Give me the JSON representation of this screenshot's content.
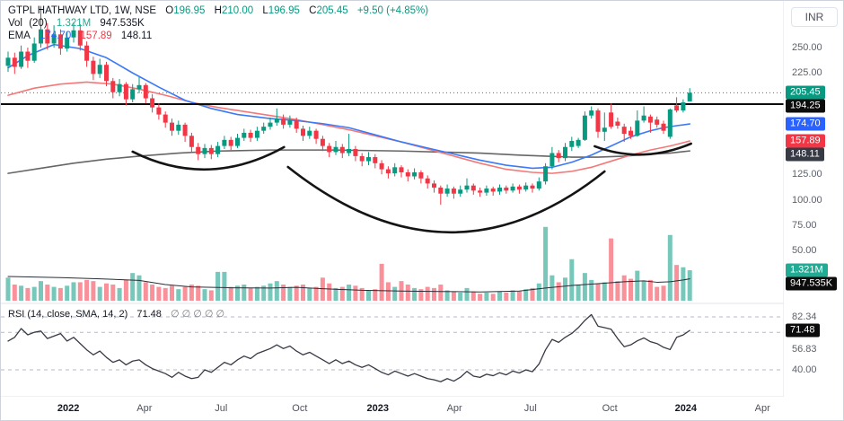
{
  "header": {
    "symbol_title": "GTPL HATHWAY LTD, 1W, NSE",
    "ohlc": {
      "o_label": "O",
      "open": "196.95",
      "h_label": "H",
      "high": "210.00",
      "l_label": "L",
      "low": "196.95",
      "c_label": "C",
      "close": "205.45",
      "change": "+9.50 (+4.85%)"
    },
    "vol": {
      "label": "Vol",
      "param": "(20)",
      "value": "1.321M",
      "ma": "947.535K"
    },
    "ema": {
      "label": "EMA",
      "v1": "174.70",
      "v2": "157.89",
      "v3": "148.11"
    }
  },
  "rsi_legend": {
    "title": "RSI (14, close, SMA, 14, 2)",
    "value": "71.48",
    "hidden_values": "∅ ∅ ∅ ∅ ∅"
  },
  "axis": {
    "currency": "INR"
  },
  "chart_data": {
    "type": "candlestick+volume+rsi",
    "symbol": "GTPL HATHWAY LTD",
    "interval": "1W",
    "exchange": "NSE",
    "currency": "INR",
    "last_bar": {
      "open": 196.95,
      "high": 210.0,
      "low": 196.95,
      "close": 205.45,
      "change": 9.5,
      "change_pct": 4.85,
      "volume": "1.321M",
      "volume_ma": "947.535K"
    },
    "current_price_line": 205.45,
    "horizontal_line": 194.25,
    "ema_last": {
      "blue": 174.7,
      "red": 157.89,
      "gray": 148.11
    },
    "rsi_last": 71.48,
    "price_ticks": [
      250,
      225,
      125,
      100,
      75,
      50
    ],
    "rsi_ticks": [
      82.34,
      56.83,
      40.0
    ],
    "rsi_gridlines": [
      82.34,
      70,
      40
    ],
    "price_badges": [
      {
        "label": "205.45",
        "value": 205.45,
        "bg": "#089981"
      },
      {
        "label": "194.25",
        "value": 194.25,
        "bg": "#0c0c0c"
      },
      {
        "label": "174.70",
        "value": 174.7,
        "bg": "#2962ff"
      },
      {
        "label": "157.89",
        "value": 157.89,
        "bg": "#f23645"
      },
      {
        "label": "148.11",
        "value": 148.11,
        "bg": "#363a45"
      }
    ],
    "volume_badges": [
      {
        "label": "1.321M",
        "value": 1.321,
        "bg": "#22ab94"
      },
      {
        "label": "947.535K",
        "value": 0.948,
        "bg": "#0c0c0c"
      }
    ],
    "rsi_badges": [
      {
        "label": "71.48",
        "value": 71.48,
        "bg": "#0c0c0c"
      }
    ],
    "x_axis": [
      {
        "label": "2022",
        "index": 9.2,
        "bold": true
      },
      {
        "label": "Apr",
        "index": 20.8,
        "bold": false
      },
      {
        "label": "Jul",
        "index": 32.5,
        "bold": false
      },
      {
        "label": "Oct",
        "index": 44.5,
        "bold": false
      },
      {
        "label": "2023",
        "index": 56.4,
        "bold": true
      },
      {
        "label": "Apr",
        "index": 68.1,
        "bold": false
      },
      {
        "label": "Jul",
        "index": 79.7,
        "bold": false
      },
      {
        "label": "Oct",
        "index": 91.8,
        "bold": false
      },
      {
        "label": "2024",
        "index": 103.4,
        "bold": true
      },
      {
        "label": "Apr",
        "index": 115.1,
        "bold": false
      }
    ],
    "candles": [
      [
        232,
        246,
        226,
        240
      ],
      [
        240,
        245,
        224,
        231
      ],
      [
        231,
        252,
        229,
        246
      ],
      [
        246,
        250,
        230,
        237
      ],
      [
        237,
        260,
        235,
        254
      ],
      [
        254,
        291,
        250,
        268
      ],
      [
        268,
        274,
        248,
        254
      ],
      [
        254,
        272,
        250,
        263
      ],
      [
        263,
        268,
        243,
        249
      ],
      [
        249,
        266,
        246,
        260
      ],
      [
        260,
        275,
        255,
        267
      ],
      [
        267,
        273,
        247,
        252
      ],
      [
        252,
        256,
        231,
        237
      ],
      [
        237,
        241,
        218,
        224
      ],
      [
        224,
        239,
        220,
        233
      ],
      [
        233,
        236,
        212,
        217
      ],
      [
        217,
        220,
        200,
        206
      ],
      [
        206,
        219,
        202,
        214
      ],
      [
        214,
        216,
        193,
        199
      ],
      [
        199,
        214,
        196,
        209
      ],
      [
        209,
        221,
        205,
        213
      ],
      [
        213,
        215,
        195,
        200
      ],
      [
        200,
        204,
        186,
        191
      ],
      [
        191,
        195,
        179,
        184
      ],
      [
        184,
        187,
        171,
        176
      ],
      [
        176,
        180,
        163,
        168
      ],
      [
        168,
        178,
        164,
        174
      ],
      [
        174,
        176,
        157,
        163
      ],
      [
        163,
        166,
        146,
        152
      ],
      [
        152,
        156,
        139,
        145
      ],
      [
        145,
        155,
        141,
        151
      ],
      [
        151,
        154,
        140,
        145
      ],
      [
        145,
        157,
        142,
        153
      ],
      [
        153,
        163,
        150,
        159
      ],
      [
        159,
        162,
        149,
        153
      ],
      [
        153,
        165,
        151,
        161
      ],
      [
        161,
        170,
        158,
        166
      ],
      [
        166,
        169,
        157,
        161
      ],
      [
        161,
        172,
        158,
        168
      ],
      [
        168,
        176,
        165,
        172
      ],
      [
        172,
        181,
        169,
        176
      ],
      [
        176,
        190,
        173,
        180
      ],
      [
        180,
        184,
        170,
        174
      ],
      [
        174,
        183,
        171,
        178
      ],
      [
        178,
        181,
        166,
        170
      ],
      [
        170,
        173,
        158,
        163
      ],
      [
        163,
        172,
        160,
        168
      ],
      [
        168,
        170,
        155,
        160
      ],
      [
        160,
        163,
        148,
        153
      ],
      [
        153,
        156,
        142,
        147
      ],
      [
        147,
        158,
        144,
        152
      ],
      [
        152,
        155,
        141,
        146
      ],
      [
        146,
        165,
        143,
        150
      ],
      [
        150,
        153,
        138,
        143
      ],
      [
        143,
        146,
        133,
        138
      ],
      [
        138,
        147,
        134,
        142
      ],
      [
        142,
        145,
        131,
        136
      ],
      [
        136,
        139,
        125,
        130
      ],
      [
        130,
        133,
        121,
        126
      ],
      [
        126,
        136,
        123,
        132
      ],
      [
        132,
        134,
        122,
        127
      ],
      [
        127,
        130,
        118,
        123
      ],
      [
        123,
        131,
        120,
        127
      ],
      [
        127,
        129,
        116,
        121
      ],
      [
        121,
        124,
        111,
        116
      ],
      [
        116,
        119,
        107,
        112
      ],
      [
        112,
        114,
        95,
        106
      ],
      [
        106,
        115,
        103,
        111
      ],
      [
        111,
        113,
        101,
        106
      ],
      [
        106,
        114,
        103,
        110
      ],
      [
        110,
        121,
        107,
        114
      ],
      [
        114,
        116,
        105,
        109
      ],
      [
        109,
        112,
        103,
        107
      ],
      [
        107,
        114,
        104,
        111
      ],
      [
        111,
        113,
        104,
        108
      ],
      [
        108,
        115,
        105,
        112
      ],
      [
        112,
        114,
        106,
        109
      ],
      [
        109,
        116,
        107,
        113
      ],
      [
        113,
        115,
        106,
        110
      ],
      [
        110,
        117,
        108,
        114
      ],
      [
        114,
        116,
        107,
        111
      ],
      [
        111,
        122,
        109,
        118
      ],
      [
        118,
        136,
        115,
        133
      ],
      [
        133,
        152,
        130,
        146
      ],
      [
        146,
        149,
        137,
        141
      ],
      [
        141,
        156,
        138,
        152
      ],
      [
        152,
        162,
        148,
        158
      ],
      [
        153,
        161,
        151,
        159
      ],
      [
        159,
        187,
        158,
        183
      ],
      [
        183,
        192,
        180,
        188
      ],
      [
        188,
        190,
        161,
        167
      ],
      [
        167,
        186,
        158,
        171
      ],
      [
        186,
        195,
        170,
        172
      ],
      [
        177,
        181,
        170,
        173
      ],
      [
        172,
        175,
        157,
        165
      ],
      [
        168,
        172,
        160,
        163
      ],
      [
        163,
        188,
        162,
        178
      ],
      [
        178,
        192,
        176,
        183
      ],
      [
        182,
        184,
        166,
        176
      ],
      [
        179,
        182,
        171,
        174
      ],
      [
        175,
        178,
        165,
        168
      ],
      [
        162,
        190,
        160,
        189
      ],
      [
        193,
        201,
        186,
        188
      ],
      [
        188,
        199,
        186,
        196
      ],
      [
        196.95,
        210,
        196.95,
        205.45
      ]
    ],
    "volumes_m": [
      1.0,
      0.7,
      0.65,
      0.55,
      0.6,
      0.85,
      0.7,
      0.6,
      0.55,
      0.65,
      0.8,
      0.8,
      0.9,
      0.85,
      0.6,
      0.75,
      0.7,
      0.55,
      0.9,
      1.2,
      1.1,
      0.8,
      0.7,
      0.6,
      0.55,
      0.65,
      0.5,
      0.6,
      0.7,
      0.65,
      0.5,
      0.45,
      1.25,
      1.25,
      0.6,
      0.65,
      0.7,
      0.55,
      0.6,
      0.65,
      0.75,
      0.85,
      0.7,
      0.6,
      0.65,
      0.7,
      0.55,
      0.6,
      1.0,
      0.75,
      0.55,
      0.6,
      0.7,
      0.65,
      0.55,
      0.45,
      0.5,
      1.6,
      0.8,
      0.6,
      0.85,
      0.7,
      0.55,
      0.5,
      0.6,
      0.55,
      0.7,
      0.45,
      0.4,
      0.35,
      0.55,
      0.4,
      0.3,
      0.35,
      0.3,
      0.4,
      0.35,
      0.45,
      0.4,
      0.5,
      0.55,
      0.75,
      3.2,
      1.1,
      0.8,
      1.0,
      1.8,
      0.7,
      1.2,
      0.9,
      0.75,
      0.8,
      2.7,
      0.85,
      1.1,
      0.95,
      1.3,
      0.85,
      0.9,
      0.6,
      0.65,
      2.85,
      1.55,
      1.45,
      1.321
    ],
    "volume_ma_m": [
      [
        0,
        1.05
      ],
      [
        8,
        1.0
      ],
      [
        14,
        0.95
      ],
      [
        20,
        0.88
      ],
      [
        24,
        0.7
      ],
      [
        28,
        0.6
      ],
      [
        34,
        0.56
      ],
      [
        40,
        0.55
      ],
      [
        44,
        0.58
      ],
      [
        48,
        0.52
      ],
      [
        54,
        0.45
      ],
      [
        60,
        0.42
      ],
      [
        66,
        0.4
      ],
      [
        72,
        0.38
      ],
      [
        78,
        0.42
      ],
      [
        82,
        0.55
      ],
      [
        86,
        0.66
      ],
      [
        90,
        0.74
      ],
      [
        94,
        0.82
      ],
      [
        97,
        0.86
      ],
      [
        99,
        0.8
      ],
      [
        101,
        0.82
      ],
      [
        103,
        0.9
      ],
      [
        104,
        0.948
      ]
    ],
    "rsi": [
      63,
      66,
      73,
      68,
      70,
      71,
      65,
      67,
      69,
      63,
      66,
      61,
      56,
      52,
      55,
      50,
      46,
      48,
      44,
      47,
      48,
      44,
      41,
      39,
      37,
      34,
      38,
      35,
      33,
      34,
      40,
      38,
      42,
      46,
      44,
      48,
      51,
      49,
      53,
      55,
      57,
      60,
      57,
      59,
      55,
      52,
      54,
      51,
      48,
      45,
      48,
      45,
      47,
      44,
      42,
      44,
      41,
      38,
      36,
      39,
      37,
      35,
      37,
      35,
      33,
      32,
      30.5,
      33,
      31,
      34,
      38.8,
      35,
      34,
      36.5,
      35.3,
      37.7,
      36,
      39,
      37.5,
      40,
      38.5,
      44.6,
      56,
      64.3,
      62,
      66,
      69.1,
      73.7,
      79.5,
      84.2,
      74.9,
      73.7,
      72.5,
      65,
      58.5,
      60,
      63.2,
      65.5,
      62.5,
      61,
      58,
      56.2,
      66,
      67.9,
      71.48
    ],
    "ema_blue": [
      [
        0,
        230
      ],
      [
        3,
        242
      ],
      [
        7,
        253
      ],
      [
        11,
        249
      ],
      [
        15,
        240
      ],
      [
        19,
        225
      ],
      [
        23,
        211
      ],
      [
        27,
        198
      ],
      [
        31,
        190
      ],
      [
        35,
        184
      ],
      [
        40,
        180
      ],
      [
        44,
        178
      ],
      [
        48,
        175
      ],
      [
        52,
        171
      ],
      [
        56,
        164
      ],
      [
        60,
        157
      ],
      [
        64,
        151
      ],
      [
        68,
        145
      ],
      [
        72,
        139
      ],
      [
        76,
        134
      ],
      [
        80,
        131
      ],
      [
        83,
        132
      ],
      [
        86,
        137
      ],
      [
        89,
        144
      ],
      [
        92,
        153
      ],
      [
        95,
        162
      ],
      [
        98,
        168
      ],
      [
        100,
        171
      ],
      [
        102,
        173
      ],
      [
        104,
        174.7
      ]
    ],
    "ema_red": [
      [
        0,
        203
      ],
      [
        4,
        210
      ],
      [
        8,
        214
      ],
      [
        12,
        216
      ],
      [
        16,
        214
      ],
      [
        20,
        209
      ],
      [
        24,
        203
      ],
      [
        28,
        196
      ],
      [
        32,
        191
      ],
      [
        36,
        187
      ],
      [
        40,
        183
      ],
      [
        44,
        179
      ],
      [
        48,
        174
      ],
      [
        52,
        169
      ],
      [
        56,
        163
      ],
      [
        60,
        157
      ],
      [
        64,
        150
      ],
      [
        68,
        143
      ],
      [
        72,
        136
      ],
      [
        76,
        130
      ],
      [
        80,
        127
      ],
      [
        83,
        126
      ],
      [
        86,
        128
      ],
      [
        89,
        132
      ],
      [
        92,
        138
      ],
      [
        95,
        144
      ],
      [
        98,
        149
      ],
      [
        101,
        153
      ],
      [
        104,
        157.89
      ]
    ],
    "ema_gray": [
      [
        0,
        126
      ],
      [
        5,
        131
      ],
      [
        10,
        136
      ],
      [
        15,
        140
      ],
      [
        20,
        143
      ],
      [
        26,
        146
      ],
      [
        32,
        148
      ],
      [
        40,
        149
      ],
      [
        50,
        149
      ],
      [
        60,
        148
      ],
      [
        66,
        147
      ],
      [
        72,
        146
      ],
      [
        78,
        144
      ],
      [
        82,
        143
      ],
      [
        86,
        142
      ],
      [
        90,
        142
      ],
      [
        94,
        143
      ],
      [
        98,
        145
      ],
      [
        101,
        146
      ],
      [
        104,
        148.11
      ]
    ],
    "arc_annotations": [
      {
        "start": [
          19.0,
          147.4
        ],
        "control": [
          30.5,
          110.2
        ],
        "end": [
          42.1,
          151.9
        ]
      },
      {
        "start": [
          42.7,
          132.3
        ],
        "control": [
          67.4,
          5.7
        ],
        "end": [
          91.0,
          127.9
        ]
      },
      {
        "start": [
          89.5,
          152.7
        ],
        "control": [
          96.7,
          135.0
        ],
        "end": [
          104.2,
          155.3
        ]
      }
    ],
    "colors": {
      "up": "#089981",
      "down": "#f23645",
      "vol_up": "rgba(8,153,129,0.55)",
      "vol_down": "rgba(242,54,69,0.55)",
      "ema_blue": "#3b7af7",
      "ema_red": "#f57878",
      "ema_gray": "#666666",
      "vol_ma": "#2a2e39",
      "rsi_line": "#373a45",
      "annotation": "#141414",
      "grid_dash": "#b7bac4",
      "separator": "#e0e3eb",
      "dotted_price": "#089981",
      "hline": "#0c0c0c"
    }
  }
}
